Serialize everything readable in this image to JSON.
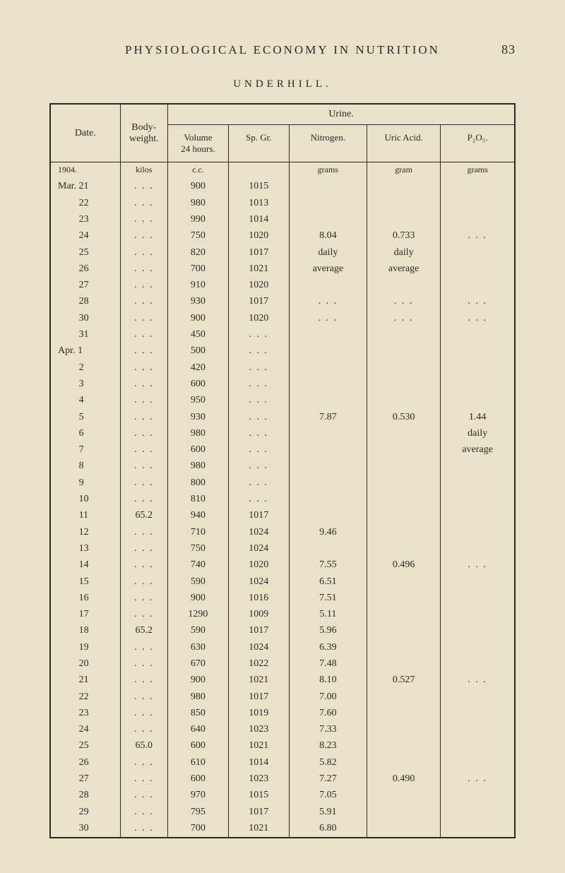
{
  "header": {
    "running_title": "PHYSIOLOGICAL ECONOMY IN NUTRITION",
    "page_number": "83",
    "subtitle": "UNDERHILL."
  },
  "table": {
    "headers": {
      "date": "Date.",
      "body_weight": "Body-\nweight.",
      "urine": "Urine.",
      "volume": "Volume\n24 hours.",
      "sp_gr": "Sp. Gr.",
      "nitrogen": "Nitrogen.",
      "uric_acid": "Uric Acid.",
      "p2o5": "P₂O₅."
    },
    "units": {
      "year": "1904.",
      "body": "kilos",
      "vol": "c.c.",
      "nit": "grams",
      "uric": "gram",
      "p": "grams"
    },
    "rows": [
      {
        "date": "Mar. 21",
        "body": ". . .",
        "vol": "900",
        "sp": "1015",
        "nit": "",
        "uric": "",
        "p": ""
      },
      {
        "date": "22",
        "body": ". . .",
        "vol": "980",
        "sp": "1013",
        "nit": "",
        "uric": "",
        "p": ""
      },
      {
        "date": "23",
        "body": ". . .",
        "vol": "990",
        "sp": "1014",
        "nit": "",
        "uric": "",
        "p": ""
      },
      {
        "date": "24",
        "body": ". . .",
        "vol": "750",
        "sp": "1020",
        "nit": "8.04",
        "uric": "0.733",
        "p": ". . ."
      },
      {
        "date": "25",
        "body": ". . .",
        "vol": "820",
        "sp": "1017",
        "nit": "daily",
        "uric": "daily",
        "p": ""
      },
      {
        "date": "26",
        "body": ". . .",
        "vol": "700",
        "sp": "1021",
        "nit": "average",
        "uric": "average",
        "p": ""
      },
      {
        "date": "27",
        "body": ". . .",
        "vol": "910",
        "sp": "1020",
        "nit": "",
        "uric": "",
        "p": ""
      },
      {
        "date": "28",
        "body": ". . .",
        "vol": "930",
        "sp": "1017",
        "nit": ". . .",
        "uric": ". . .",
        "p": ". . ."
      },
      {
        "date": "30",
        "body": ". . .",
        "vol": "900",
        "sp": "1020",
        "nit": ". . .",
        "uric": ". . .",
        "p": ". . ."
      },
      {
        "date": "31",
        "body": ". . .",
        "vol": "450",
        "sp": ". . .",
        "nit": "",
        "uric": "",
        "p": ""
      },
      {
        "date": "Apr.  1",
        "body": ". . .",
        "vol": "500",
        "sp": ". . .",
        "nit": "",
        "uric": "",
        "p": ""
      },
      {
        "date": "2",
        "body": ". . .",
        "vol": "420",
        "sp": ". . .",
        "nit": "",
        "uric": "",
        "p": ""
      },
      {
        "date": "3",
        "body": ". . .",
        "vol": "600",
        "sp": ". . .",
        "nit": "",
        "uric": "",
        "p": ""
      },
      {
        "date": "4",
        "body": ". . .",
        "vol": "950",
        "sp": ". . .",
        "nit": "",
        "uric": "",
        "p": ""
      },
      {
        "date": "5",
        "body": ". . .",
        "vol": "930",
        "sp": ". . .",
        "nit": "7.87",
        "uric": "0.530",
        "p": "1.44"
      },
      {
        "date": "6",
        "body": ". . .",
        "vol": "980",
        "sp": ". . .",
        "nit": "",
        "uric": "",
        "p": "daily"
      },
      {
        "date": "7",
        "body": ". . .",
        "vol": "600",
        "sp": ". . .",
        "nit": "",
        "uric": "",
        "p": "average"
      },
      {
        "date": "8",
        "body": ". . .",
        "vol": "980",
        "sp": ". . .",
        "nit": "",
        "uric": "",
        "p": ""
      },
      {
        "date": "9",
        "body": ". . .",
        "vol": "800",
        "sp": ". . .",
        "nit": "",
        "uric": "",
        "p": ""
      },
      {
        "date": "10",
        "body": ". . .",
        "vol": "810",
        "sp": ". . .",
        "nit": "",
        "uric": "",
        "p": ""
      },
      {
        "date": "11",
        "body": "65.2",
        "vol": "940",
        "sp": "1017",
        "nit": "",
        "uric": "",
        "p": ""
      },
      {
        "date": "12",
        "body": ". . .",
        "vol": "710",
        "sp": "1024",
        "nit": "9.46",
        "uric": "",
        "p": ""
      },
      {
        "date": "13",
        "body": ". . .",
        "vol": "750",
        "sp": "1024",
        "nit": "",
        "uric": "",
        "p": ""
      },
      {
        "date": "14",
        "body": ". . .",
        "vol": "740",
        "sp": "1020",
        "nit": "7.55",
        "uric": "0.496",
        "p": ". . ."
      },
      {
        "date": "15",
        "body": ". . .",
        "vol": "590",
        "sp": "1024",
        "nit": "6.51",
        "uric": "",
        "p": ""
      },
      {
        "date": "16",
        "body": ". . .",
        "vol": "900",
        "sp": "1016",
        "nit": "7.51",
        "uric": "",
        "p": ""
      },
      {
        "date": "17",
        "body": ". . .",
        "vol": "1290",
        "sp": "1009",
        "nit": "5.11",
        "uric": "",
        "p": ""
      },
      {
        "date": "18",
        "body": "65.2",
        "vol": "590",
        "sp": "1017",
        "nit": "5.96",
        "uric": "",
        "p": ""
      },
      {
        "date": "19",
        "body": ". . .",
        "vol": "630",
        "sp": "1024",
        "nit": "6.39",
        "uric": "",
        "p": ""
      },
      {
        "date": "20",
        "body": ". . .",
        "vol": "670",
        "sp": "1022",
        "nit": "7.48",
        "uric": "",
        "p": ""
      },
      {
        "date": "21",
        "body": ". . .",
        "vol": "900",
        "sp": "1021",
        "nit": "8.10",
        "uric": "0.527",
        "p": ". . ."
      },
      {
        "date": "22",
        "body": ". . .",
        "vol": "980",
        "sp": "1017",
        "nit": "7.00",
        "uric": "",
        "p": ""
      },
      {
        "date": "23",
        "body": ". . .",
        "vol": "850",
        "sp": "1019",
        "nit": "7.60",
        "uric": "",
        "p": ""
      },
      {
        "date": "24",
        "body": ". . .",
        "vol": "640",
        "sp": "1023",
        "nit": "7.33",
        "uric": "",
        "p": ""
      },
      {
        "date": "25",
        "body": "65.0",
        "vol": "600",
        "sp": "1021",
        "nit": "8.23",
        "uric": "",
        "p": ""
      },
      {
        "date": "26",
        "body": ". . .",
        "vol": "610",
        "sp": "1014",
        "nit": "5.82",
        "uric": "",
        "p": ""
      },
      {
        "date": "27",
        "body": ". . .",
        "vol": "600",
        "sp": "1023",
        "nit": "7.27",
        "uric": "0.490",
        "p": ". . ."
      },
      {
        "date": "28",
        "body": ". . .",
        "vol": "970",
        "sp": "1015",
        "nit": "7.05",
        "uric": "",
        "p": ""
      },
      {
        "date": "29",
        "body": ". . .",
        "vol": "795",
        "sp": "1017",
        "nit": "5.91",
        "uric": "",
        "p": ""
      },
      {
        "date": "30",
        "body": ". . .",
        "vol": "700",
        "sp": "1021",
        "nit": "6.80",
        "uric": "",
        "p": ""
      }
    ]
  }
}
